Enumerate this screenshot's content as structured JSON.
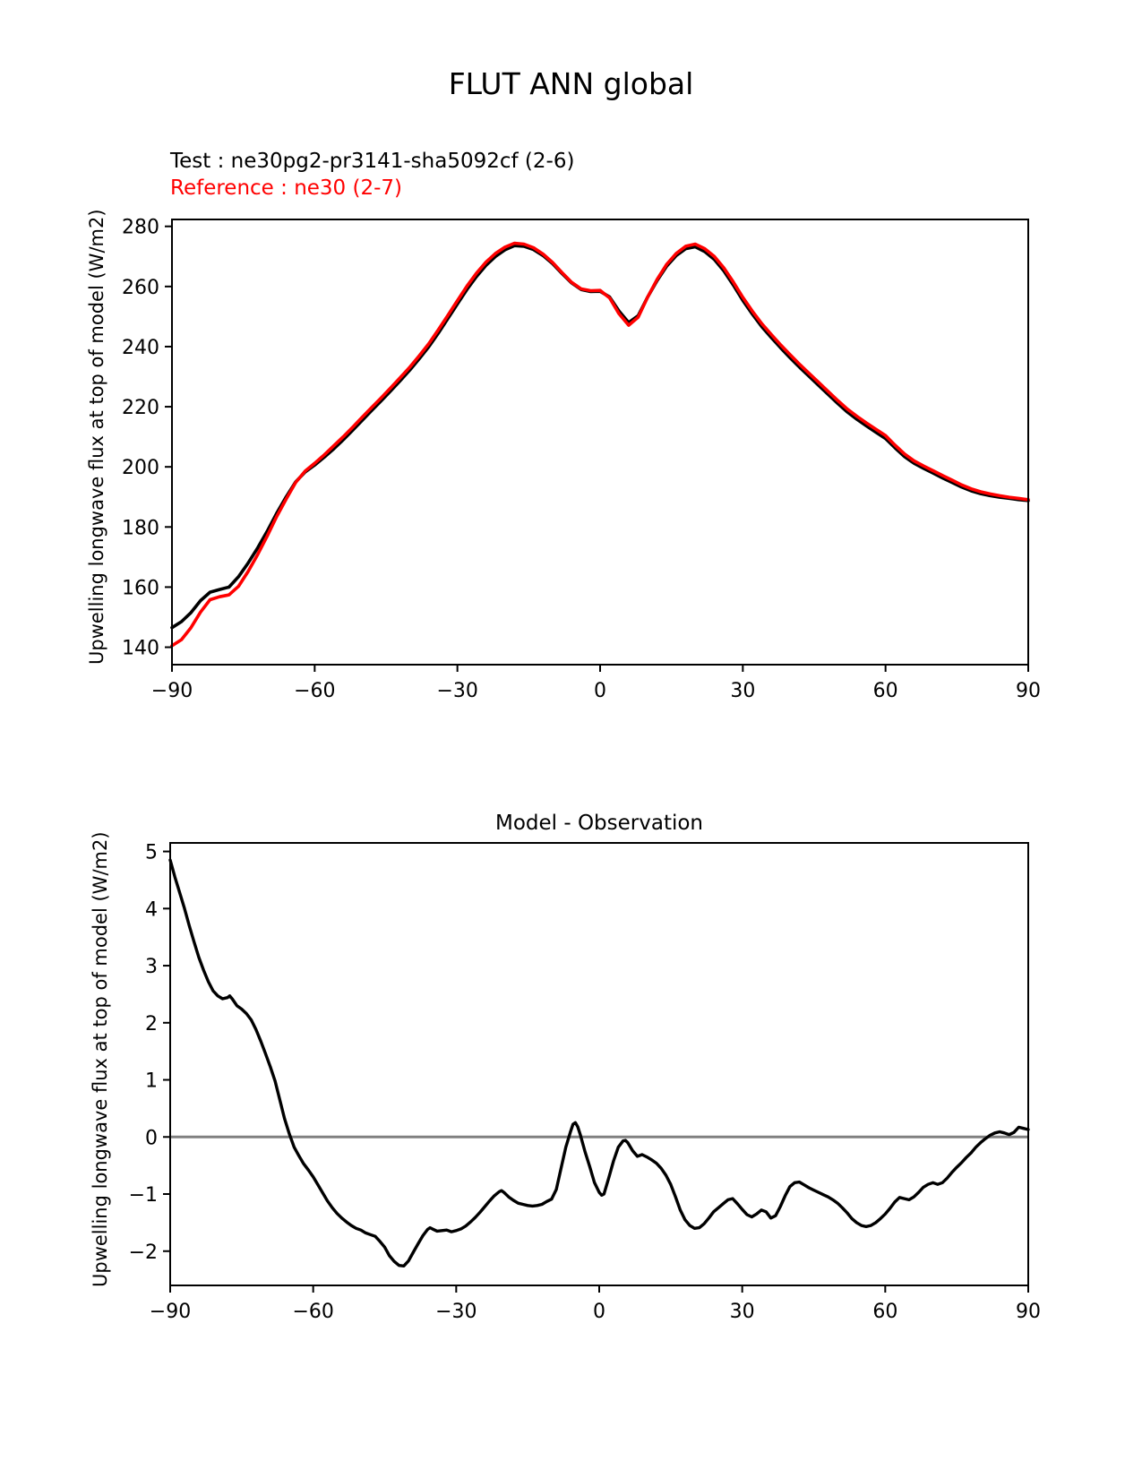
{
  "figure_title": "FLUT ANN global",
  "legend": {
    "test_label": "Test : ne30pg2-pr3141-sha5092cf (2-6)",
    "reference_label": "Reference : ne30 (2-7)"
  },
  "colors": {
    "test_line": "#000000",
    "reference_line": "#ff0000",
    "diff_line": "#000000",
    "zero_line": "#808080"
  },
  "chart_data": [
    {
      "type": "line",
      "title": "FLUT ANN global",
      "xlabel": "",
      "ylabel": "Upwelling longwave flux at top of model (W/m2)",
      "xlim": [
        -90,
        90
      ],
      "ylim": [
        134.2,
        282.3
      ],
      "xticks": [
        -90,
        -60,
        -30,
        0,
        30,
        60,
        90
      ],
      "yticks": [
        140,
        160,
        180,
        200,
        220,
        240,
        260,
        280
      ],
      "grid": false,
      "legend_position": "above-left",
      "x": [
        -90,
        -88,
        -86,
        -84,
        -82,
        -80,
        -78,
        -76,
        -74,
        -72,
        -70,
        -68,
        -66,
        -64,
        -62,
        -60,
        -58,
        -56,
        -54,
        -52,
        -50,
        -48,
        -46,
        -44,
        -42,
        -40,
        -38,
        -36,
        -34,
        -32,
        -30,
        -28,
        -26,
        -24,
        -22,
        -20,
        -18,
        -16,
        -14,
        -12,
        -10,
        -8,
        -6,
        -4,
        -2,
        0,
        2,
        4,
        6,
        8,
        10,
        12,
        14,
        16,
        18,
        20,
        22,
        24,
        26,
        28,
        30,
        32,
        34,
        36,
        38,
        40,
        42,
        44,
        46,
        48,
        50,
        52,
        54,
        56,
        58,
        60,
        62,
        64,
        66,
        68,
        70,
        72,
        74,
        76,
        78,
        80,
        82,
        84,
        86,
        88,
        90
      ],
      "series": [
        {
          "name": "Test : ne30pg2-pr3141-sha5092cf (2-6)",
          "color": "#000000",
          "values": [
            146.5,
            148.5,
            151.5,
            155.5,
            158.3,
            159.2,
            160.0,
            163.5,
            168.0,
            173.0,
            178.5,
            184.5,
            190.0,
            195.0,
            198.3,
            200.6,
            203.2,
            206.0,
            209.0,
            212.2,
            215.5,
            218.8,
            222.0,
            225.3,
            228.7,
            232.2,
            236.0,
            240.0,
            244.5,
            249.3,
            254.2,
            259.0,
            263.3,
            267.0,
            270.0,
            272.2,
            273.6,
            273.4,
            272.3,
            270.3,
            267.6,
            264.3,
            261.2,
            259.0,
            258.3,
            258.4,
            256.5,
            251.8,
            248.0,
            250.3,
            256.5,
            262.0,
            266.8,
            270.3,
            272.6,
            273.2,
            271.6,
            269.0,
            265.2,
            260.5,
            255.4,
            250.8,
            246.6,
            243.0,
            239.5,
            236.2,
            233.0,
            230.0,
            227.0,
            224.0,
            221.0,
            218.2,
            215.8,
            213.6,
            211.5,
            209.4,
            206.3,
            203.4,
            201.2,
            199.5,
            197.9,
            196.3,
            194.8,
            193.3,
            192.0,
            191.1,
            190.4,
            189.9,
            189.5,
            189.1,
            188.8
          ]
        },
        {
          "name": "Reference : ne30 (2-7)",
          "color": "#ff0000",
          "values": [
            140.5,
            142.5,
            146.5,
            151.7,
            155.8,
            156.8,
            157.4,
            160.3,
            165.2,
            170.8,
            176.9,
            183.4,
            189.3,
            194.8,
            198.6,
            201.2,
            204.0,
            207.0,
            210.0,
            213.2,
            216.5,
            219.8,
            223.0,
            226.3,
            229.7,
            233.2,
            237.0,
            241.0,
            245.6,
            250.4,
            255.3,
            260.1,
            264.4,
            268.1,
            271.0,
            273.1,
            274.4,
            274.1,
            272.9,
            270.8,
            268.0,
            264.6,
            261.4,
            259.2,
            258.6,
            258.7,
            256.2,
            250.9,
            247.1,
            249.8,
            256.5,
            262.4,
            267.4,
            271.0,
            273.4,
            274.1,
            272.6,
            270.0,
            266.2,
            261.5,
            256.4,
            251.8,
            247.6,
            244.0,
            240.5,
            237.2,
            234.0,
            231.0,
            228.0,
            225.0,
            222.0,
            219.2,
            216.8,
            214.6,
            212.5,
            210.4,
            207.2,
            204.3,
            202.0,
            200.3,
            198.7,
            197.1,
            195.6,
            194.0,
            192.7,
            191.7,
            191.0,
            190.4,
            189.9,
            189.5,
            189.1
          ]
        }
      ]
    },
    {
      "type": "line",
      "title": "Model - Observation",
      "xlabel": "",
      "ylabel": "Upwelling longwave flux at top of model (W/m2)",
      "xlim": [
        -90,
        90
      ],
      "ylim": [
        -2.6,
        5.15
      ],
      "xticks": [
        -90,
        -60,
        -30,
        0,
        30,
        60,
        90
      ],
      "yticks": [
        -2,
        -1,
        0,
        1,
        2,
        3,
        4,
        5
      ],
      "grid": false,
      "zero_line": true,
      "series": [
        {
          "name": "Model - Observation",
          "color": "#000000",
          "points": [
            [
              -90,
              4.85
            ],
            [
              -89,
              4.55
            ],
            [
              -88,
              4.28
            ],
            [
              -87,
              4.0
            ],
            [
              -86,
              3.7
            ],
            [
              -85,
              3.42
            ],
            [
              -84,
              3.15
            ],
            [
              -83,
              2.92
            ],
            [
              -82,
              2.72
            ],
            [
              -81,
              2.56
            ],
            [
              -80,
              2.47
            ],
            [
              -79,
              2.42
            ],
            [
              -78,
              2.44
            ],
            [
              -77.5,
              2.47
            ],
            [
              -77,
              2.42
            ],
            [
              -76,
              2.3
            ],
            [
              -75,
              2.24
            ],
            [
              -74,
              2.16
            ],
            [
              -73,
              2.05
            ],
            [
              -72,
              1.88
            ],
            [
              -71,
              1.68
            ],
            [
              -70,
              1.46
            ],
            [
              -69,
              1.23
            ],
            [
              -68,
              0.98
            ],
            [
              -67,
              0.65
            ],
            [
              -66,
              0.32
            ],
            [
              -65,
              0.05
            ],
            [
              -64,
              -0.18
            ],
            [
              -63,
              -0.33
            ],
            [
              -62,
              -0.47
            ],
            [
              -61,
              -0.58
            ],
            [
              -60,
              -0.7
            ],
            [
              -59,
              -0.84
            ],
            [
              -58,
              -0.98
            ],
            [
              -57,
              -1.12
            ],
            [
              -56,
              -1.24
            ],
            [
              -55,
              -1.34
            ],
            [
              -54,
              -1.42
            ],
            [
              -53,
              -1.49
            ],
            [
              -52,
              -1.55
            ],
            [
              -51,
              -1.6
            ],
            [
              -50,
              -1.63
            ],
            [
              -49,
              -1.68
            ],
            [
              -48,
              -1.71
            ],
            [
              -47,
              -1.74
            ],
            [
              -46,
              -1.83
            ],
            [
              -45,
              -1.93
            ],
            [
              -44,
              -2.08
            ],
            [
              -43,
              -2.18
            ],
            [
              -42,
              -2.25
            ],
            [
              -41,
              -2.26
            ],
            [
              -40,
              -2.17
            ],
            [
              -39,
              -2.02
            ],
            [
              -38,
              -1.87
            ],
            [
              -37,
              -1.73
            ],
            [
              -36,
              -1.62
            ],
            [
              -35.5,
              -1.59
            ],
            [
              -35,
              -1.61
            ],
            [
              -34,
              -1.65
            ],
            [
              -33,
              -1.64
            ],
            [
              -32,
              -1.63
            ],
            [
              -31,
              -1.66
            ],
            [
              -30,
              -1.64
            ],
            [
              -29,
              -1.61
            ],
            [
              -28,
              -1.56
            ],
            [
              -27,
              -1.49
            ],
            [
              -26,
              -1.41
            ],
            [
              -25,
              -1.32
            ],
            [
              -24,
              -1.22
            ],
            [
              -23,
              -1.12
            ],
            [
              -22,
              -1.03
            ],
            [
              -21,
              -0.96
            ],
            [
              -20.5,
              -0.94
            ],
            [
              -20,
              -0.97
            ],
            [
              -19,
              -1.05
            ],
            [
              -18,
              -1.11
            ],
            [
              -17,
              -1.16
            ],
            [
              -16,
              -1.18
            ],
            [
              -15,
              -1.2
            ],
            [
              -14,
              -1.21
            ],
            [
              -13,
              -1.2
            ],
            [
              -12,
              -1.18
            ],
            [
              -11,
              -1.13
            ],
            [
              -10,
              -1.09
            ],
            [
              -9,
              -0.92
            ],
            [
              -8,
              -0.55
            ],
            [
              -7,
              -0.18
            ],
            [
              -6,
              0.1
            ],
            [
              -5.5,
              0.22
            ],
            [
              -5,
              0.25
            ],
            [
              -4.5,
              0.18
            ],
            [
              -4,
              0.05
            ],
            [
              -3,
              -0.25
            ],
            [
              -2,
              -0.52
            ],
            [
              -1,
              -0.8
            ],
            [
              0,
              -0.97
            ],
            [
              0.5,
              -1.02
            ],
            [
              1,
              -1.0
            ],
            [
              2,
              -0.72
            ],
            [
              3,
              -0.42
            ],
            [
              4,
              -0.18
            ],
            [
              5,
              -0.07
            ],
            [
              5.5,
              -0.06
            ],
            [
              6,
              -0.1
            ],
            [
              7,
              -0.24
            ],
            [
              8,
              -0.34
            ],
            [
              9,
              -0.31
            ],
            [
              10,
              -0.35
            ],
            [
              11,
              -0.4
            ],
            [
              12,
              -0.46
            ],
            [
              13,
              -0.55
            ],
            [
              14,
              -0.67
            ],
            [
              15,
              -0.83
            ],
            [
              16,
              -1.05
            ],
            [
              17,
              -1.28
            ],
            [
              18,
              -1.45
            ],
            [
              19,
              -1.55
            ],
            [
              20,
              -1.6
            ],
            [
              21,
              -1.59
            ],
            [
              22,
              -1.52
            ],
            [
              23,
              -1.42
            ],
            [
              24,
              -1.31
            ],
            [
              25,
              -1.24
            ],
            [
              26,
              -1.17
            ],
            [
              27,
              -1.1
            ],
            [
              28,
              -1.08
            ],
            [
              29,
              -1.17
            ],
            [
              30,
              -1.27
            ],
            [
              31,
              -1.36
            ],
            [
              32,
              -1.4
            ],
            [
              33,
              -1.35
            ],
            [
              34,
              -1.28
            ],
            [
              35,
              -1.31
            ],
            [
              36,
              -1.42
            ],
            [
              37,
              -1.38
            ],
            [
              38,
              -1.22
            ],
            [
              39,
              -1.03
            ],
            [
              40,
              -0.87
            ],
            [
              41,
              -0.8
            ],
            [
              42,
              -0.79
            ],
            [
              43,
              -0.84
            ],
            [
              44,
              -0.89
            ],
            [
              45,
              -0.93
            ],
            [
              46,
              -0.97
            ],
            [
              47,
              -1.01
            ],
            [
              48,
              -1.05
            ],
            [
              49,
              -1.1
            ],
            [
              50,
              -1.16
            ],
            [
              51,
              -1.24
            ],
            [
              52,
              -1.33
            ],
            [
              53,
              -1.43
            ],
            [
              54,
              -1.5
            ],
            [
              55,
              -1.55
            ],
            [
              56,
              -1.57
            ],
            [
              57,
              -1.55
            ],
            [
              58,
              -1.5
            ],
            [
              59,
              -1.43
            ],
            [
              60,
              -1.35
            ],
            [
              61,
              -1.25
            ],
            [
              62,
              -1.14
            ],
            [
              63,
              -1.06
            ],
            [
              64,
              -1.08
            ],
            [
              65,
              -1.1
            ],
            [
              66,
              -1.05
            ],
            [
              67,
              -0.97
            ],
            [
              68,
              -0.88
            ],
            [
              69,
              -0.83
            ],
            [
              70,
              -0.8
            ],
            [
              71,
              -0.83
            ],
            [
              72,
              -0.8
            ],
            [
              73,
              -0.72
            ],
            [
              74,
              -0.62
            ],
            [
              75,
              -0.53
            ],
            [
              76,
              -0.45
            ],
            [
              77,
              -0.36
            ],
            [
              78,
              -0.28
            ],
            [
              79,
              -0.18
            ],
            [
              80,
              -0.1
            ],
            [
              81,
              -0.03
            ],
            [
              82,
              0.03
            ],
            [
              83,
              0.07
            ],
            [
              84,
              0.09
            ],
            [
              85,
              0.07
            ],
            [
              86,
              0.04
            ],
            [
              87,
              0.08
            ],
            [
              88,
              0.17
            ],
            [
              89,
              0.15
            ],
            [
              90,
              0.13
            ]
          ]
        }
      ]
    }
  ]
}
